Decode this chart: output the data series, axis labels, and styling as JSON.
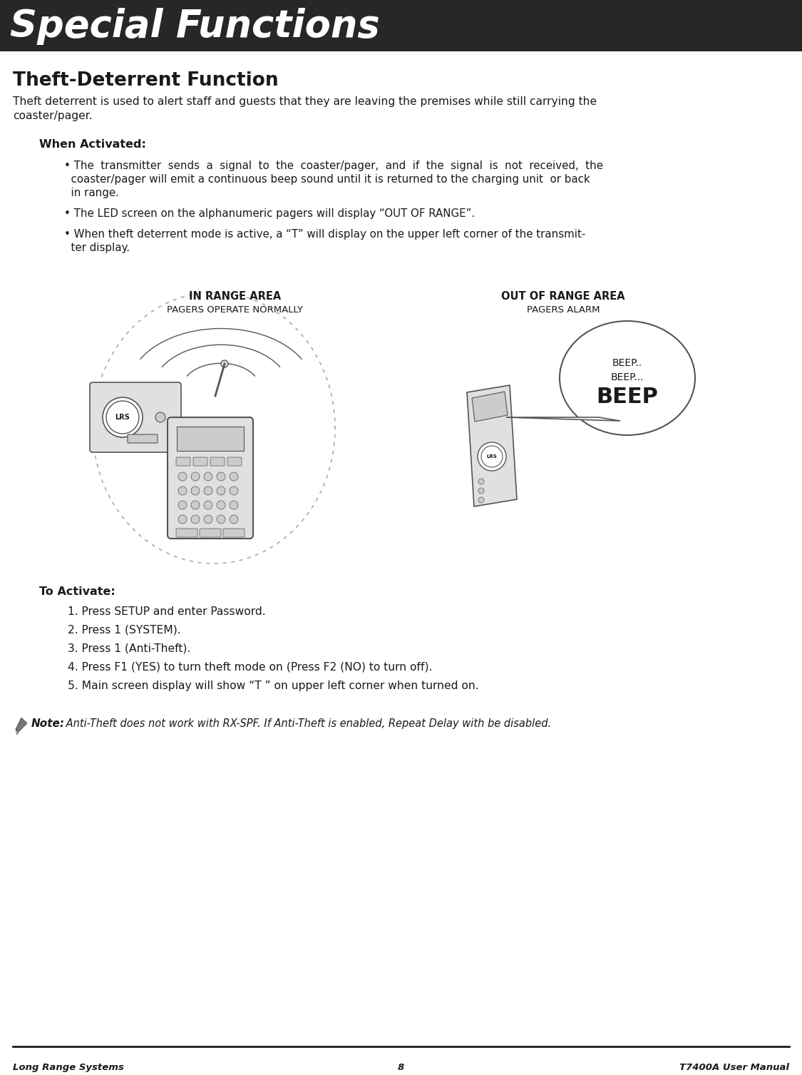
{
  "header_bg": "#272727",
  "header_text": "Special Functions",
  "header_text_color": "#ffffff",
  "page_bg": "#ffffff",
  "title": "Theft-Deterrent Function",
  "intro_line1": "Theft deterrent is used to alert staff and guests that they are leaving the premises while still carrying the",
  "intro_line2": "coaster/pager.",
  "when_activated_label": "When Activated:",
  "bullet1_line1": "• The  transmitter  sends  a  signal  to  the  coaster/pager,  and  if  the  signal  is  not  received,  the",
  "bullet1_line2": "  coaster/pager will emit a continuous beep sound until it is returned to the charging unit  or back",
  "bullet1_line3": "  in range.",
  "bullet2": "• The LED screen on the alphanumeric pagers will display “OUT OF RANGE”.",
  "bullet3_line1": "• When theft deterrent mode is active, a “T” will display on the upper left corner of the transmit-",
  "bullet3_line2": "  ter display.",
  "to_activate_label": "To Activate:",
  "step1": "1. Press SETUP and enter Password.",
  "step2": "2. Press 1 (SYSTEM).",
  "step3": "3. Press 1 (Anti-Theft).",
  "step4": "4. Press F1 (YES) to turn theft mode on (Press F2 (NO) to turn off).",
  "step5": "5. Main screen display will show “T ” on upper left corner when turned on.",
  "note_label": "Note:",
  "note_text": " Anti-Theft does not work with RX-SPF. If Anti-Theft is enabled, Repeat Delay with be disabled.",
  "in_range_label": "IN RANGE AREA",
  "in_range_sub": "PAGERS OPERATE NORMALLY",
  "out_range_label": "OUT OF RANGE AREA",
  "out_range_sub": "PAGERS ALARM",
  "footer_left": "Long Range Systems",
  "footer_center": "8",
  "footer_right": "T7400A User Manual",
  "text_color": "#1a1a1a",
  "gray_device": "#e0e0e0",
  "gray_dark": "#555555",
  "gray_med": "#888888",
  "gray_light": "#cccccc"
}
